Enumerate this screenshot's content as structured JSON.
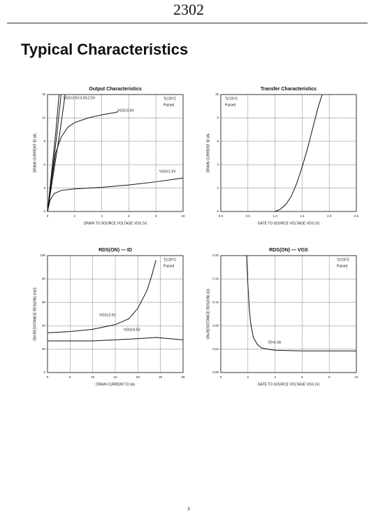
{
  "header": "2302",
  "heading": "Typical Characteristics",
  "page_number": "3",
  "chart_data": [
    {
      "type": "line",
      "title": "Output Characteristics",
      "xlabel": "DRAIN TO SOURCE VOLTAGE  VDS  (V)",
      "ylabel": "DRAIN CURRENT  ID  (A)",
      "xlim": [
        0,
        10
      ],
      "ylim": [
        0,
        15
      ],
      "xticks": [
        0,
        2,
        4,
        6,
        8,
        10
      ],
      "yticks": [
        0,
        3,
        6,
        9,
        12,
        15
      ],
      "grid": true,
      "annotations": [
        "Tj=25°C",
        "Pulsed"
      ],
      "series": [
        {
          "name": "VGS=3.5V,3.0V,2.5V",
          "color": "#111111",
          "x": [
            0,
            0.3,
            0.6,
            0.85
          ],
          "values": [
            0,
            5,
            10,
            15
          ]
        },
        {
          "color": "#111111",
          "x": [
            0,
            0.35,
            0.7,
            1.0
          ],
          "values": [
            0,
            5,
            10,
            15
          ]
        },
        {
          "color": "#111111",
          "x": [
            0,
            0.45,
            0.9,
            1.3
          ],
          "values": [
            0,
            5,
            10,
            15
          ]
        },
        {
          "name": "VGS=2.0V",
          "color": "#111111",
          "x": [
            0,
            0.3,
            0.6,
            1,
            1.5,
            2,
            3,
            4,
            5,
            5.2
          ],
          "values": [
            0,
            4,
            7.5,
            9.5,
            10.8,
            11.4,
            12,
            12.4,
            12.7,
            12.8
          ]
        },
        {
          "name": "VGS=1.5V",
          "color": "#111111",
          "x": [
            0,
            0.2,
            0.5,
            1,
            2,
            4,
            6,
            8,
            10
          ],
          "values": [
            0,
            1.5,
            2.3,
            2.7,
            2.9,
            3.1,
            3.4,
            3.8,
            4.3
          ]
        }
      ]
    },
    {
      "type": "line",
      "title": "Transfer Characteristics",
      "xlabel": "GATE TO SOURCE VOLTAGE  VGS  (V)",
      "ylabel": "DRAIN CURRENT  ID  (A)",
      "xlim": [
        0,
        2.5
      ],
      "ylim": [
        0,
        10
      ],
      "xticks": [
        {
          "value": 0,
          "label": "0.0"
        },
        0.5,
        {
          "value": 1,
          "label": "1.0"
        },
        1.5,
        {
          "value": 2,
          "label": "2.0"
        },
        2.5
      ],
      "yticks": [
        0,
        2,
        4,
        6,
        8,
        10
      ],
      "grid": true,
      "annotations": [
        "Tj=25°C",
        "Pulsed"
      ],
      "series": [
        {
          "color": "#111111",
          "x": [
            1.0,
            1.1,
            1.2,
            1.3,
            1.4,
            1.5,
            1.6,
            1.7,
            1.8,
            1.87
          ],
          "values": [
            0,
            0.2,
            0.6,
            1.3,
            2.4,
            3.8,
            5.4,
            7.2,
            9.0,
            10
          ]
        }
      ]
    },
    {
      "type": "line",
      "title": "RDS(ON) — ID",
      "xlabel": "DRAIN CURRENT  ID  (A)",
      "ylabel": "ON-RESISTANCE  RDS(ON)  (mΩ)",
      "xlim": [
        0,
        30
      ],
      "ylim": [
        0,
        100
      ],
      "xticks": [
        0,
        5,
        10,
        15,
        20,
        25,
        30
      ],
      "yticks": [
        0,
        20,
        40,
        60,
        80,
        100
      ],
      "grid": true,
      "annotations": [
        "Tj=25°C",
        "Pulsed"
      ],
      "series": [
        {
          "name": "VGS=2.5V",
          "color": "#111111",
          "x": [
            0,
            5,
            10,
            15,
            18,
            20,
            22,
            23,
            24
          ],
          "values": [
            34,
            35,
            37,
            41,
            46,
            55,
            70,
            82,
            96
          ]
        },
        {
          "name": "VGS=4.5V",
          "color": "#111111",
          "x": [
            0,
            5,
            10,
            15,
            20,
            24,
            27,
            30
          ],
          "values": [
            27,
            27,
            27,
            28,
            29,
            30,
            29,
            28
          ]
        }
      ]
    },
    {
      "type": "line",
      "title": "RDS(ON) — VGS",
      "xlabel": "GATE TO SOURCE VOLTAGE  VGS  (V)",
      "ylabel": "ON-RESISTANCE  RDS(ON)  (Ω)",
      "xlim": [
        0,
        10
      ],
      "ylim": [
        0,
        0.2
      ],
      "xticks": [
        0,
        2,
        4,
        6,
        8,
        10
      ],
      "yticks": [
        {
          "value": 0,
          "label": "0.00"
        },
        0.04,
        0.08,
        0.12,
        0.16,
        {
          "value": 0.2,
          "label": "0.20"
        }
      ],
      "grid": true,
      "annotations": [
        "Tj=25°C",
        "Pulsed"
      ],
      "series": [
        {
          "name": "ID=4.5A",
          "color": "#111111",
          "x": [
            1.9,
            2,
            2.1,
            2.2,
            2.4,
            2.7,
            3,
            4,
            6,
            10
          ],
          "values": [
            0.2,
            0.15,
            0.11,
            0.085,
            0.06,
            0.048,
            0.042,
            0.038,
            0.037,
            0.037
          ]
        }
      ]
    }
  ]
}
